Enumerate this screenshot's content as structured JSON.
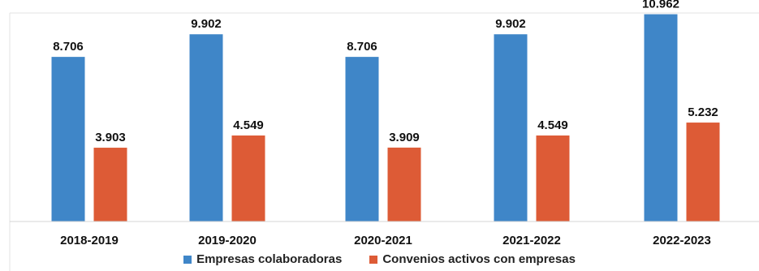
{
  "chart_data": {
    "type": "bar",
    "categories": [
      "2018-2019",
      "2019-2020",
      "2020-2021",
      "2021-2022",
      "2022-2023"
    ],
    "series": [
      {
        "name": "Empresas colaboradoras",
        "values": [
          8706,
          9902,
          8706,
          9902,
          10962
        ],
        "labels": [
          "8.706",
          "9.902",
          "8.706",
          "9.902",
          "10.962"
        ],
        "color": "#3f86c8"
      },
      {
        "name": "Convenios activos con empresas",
        "values": [
          3903,
          4549,
          3909,
          4549,
          5232
        ],
        "labels": [
          "3.903",
          "4.549",
          "3.909",
          "4.549",
          "5.232"
        ],
        "color": "#dd5b36"
      }
    ],
    "ylim": [
      0,
      11500
    ],
    "grid": false,
    "legend": "bottom"
  }
}
